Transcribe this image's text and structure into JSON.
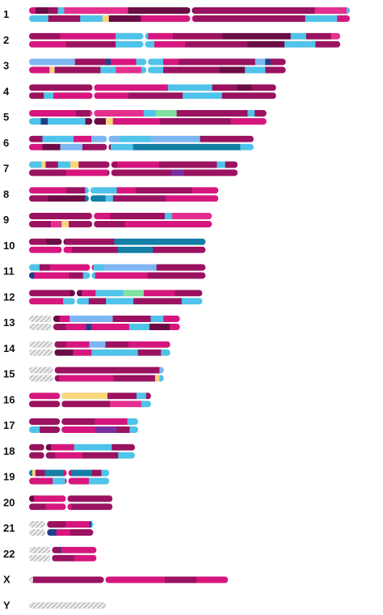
{
  "palette": {
    "magenta": "#d6167e",
    "plum": "#9a1260",
    "deep_plum": "#6b0c45",
    "pink": "#e52f8f",
    "sky": "#4fc3ea",
    "periwinkle": "#7db6f2",
    "teal": "#147fa6",
    "navy": "#1f3f8a",
    "mint": "#7ee0a1",
    "yellow": "#f7d77a",
    "purple": "#7a2f9e",
    "unknown": "#bdbdbd"
  },
  "chromosomes": [
    {
      "label": "1",
      "rel_length": 1.0,
      "centromere": 0.505,
      "unknown": 0,
      "top": [
        [
          "magenta",
          0.02
        ],
        [
          "deep_plum",
          0.04
        ],
        [
          "plum",
          0.03
        ],
        [
          "sky",
          0.02
        ],
        [
          "pink",
          0.2
        ],
        [
          "deep_plum",
          0.2
        ],
        [
          "plum",
          0.38
        ],
        [
          "pink",
          0.1
        ],
        [
          "sky",
          0.01
        ]
      ],
      "bottom": [
        [
          "sky",
          0.06
        ],
        [
          "plum",
          0.1
        ],
        [
          "sky",
          0.07
        ],
        [
          "yellow",
          0.02
        ],
        [
          "deep_plum",
          0.1
        ],
        [
          "magenta",
          0.16
        ],
        [
          "plum",
          0.35
        ],
        [
          "sky",
          0.1
        ],
        [
          "magenta",
          0.04
        ]
      ]
    },
    {
      "label": "2",
      "rel_length": 0.97,
      "centromere": 0.37,
      "unknown": 0,
      "top": [
        [
          "plum",
          0.1
        ],
        [
          "magenta",
          0.18
        ],
        [
          "sky",
          0.1
        ],
        [
          "magenta",
          0.08
        ],
        [
          "plum",
          0.16
        ],
        [
          "deep_plum",
          0.22
        ],
        [
          "sky",
          0.05
        ],
        [
          "plum",
          0.08
        ],
        [
          "pink",
          0.03
        ]
      ],
      "bottom": [
        [
          "magenta",
          0.12
        ],
        [
          "plum",
          0.16
        ],
        [
          "sky",
          0.12
        ],
        [
          "magenta",
          0.1
        ],
        [
          "plum",
          0.2
        ],
        [
          "deep_plum",
          0.12
        ],
        [
          "sky",
          0.1
        ],
        [
          "plum",
          0.08
        ]
      ]
    },
    {
      "label": "3",
      "rel_length": 0.8,
      "centromere": 0.46,
      "unknown": 0,
      "top": [
        [
          "periwinkle",
          0.18
        ],
        [
          "plum",
          0.12
        ],
        [
          "navy",
          0.02
        ],
        [
          "magenta",
          0.1
        ],
        [
          "sky",
          0.1
        ],
        [
          "magenta",
          0.06
        ],
        [
          "plum",
          0.3
        ],
        [
          "periwinkle",
          0.04
        ],
        [
          "navy",
          0.02
        ],
        [
          "plum",
          0.06
        ]
      ],
      "bottom": [
        [
          "magenta",
          0.08
        ],
        [
          "yellow",
          0.02
        ],
        [
          "plum",
          0.18
        ],
        [
          "sky",
          0.06
        ],
        [
          "pink",
          0.1
        ],
        [
          "sky",
          0.08
        ],
        [
          "plum",
          0.22
        ],
        [
          "deep_plum",
          0.1
        ],
        [
          "sky",
          0.08
        ],
        [
          "plum",
          0.08
        ]
      ]
    },
    {
      "label": "4",
      "rel_length": 0.77,
      "centromere": 0.26,
      "unknown": 0,
      "top": [
        [
          "plum",
          0.26
        ],
        [
          "magenta",
          0.3
        ],
        [
          "sky",
          0.18
        ],
        [
          "plum",
          0.1
        ],
        [
          "deep_plum",
          0.06
        ],
        [
          "plum",
          0.1
        ]
      ],
      "bottom": [
        [
          "plum",
          0.06
        ],
        [
          "sky",
          0.04
        ],
        [
          "magenta",
          0.3
        ],
        [
          "plum",
          0.22
        ],
        [
          "sky",
          0.16
        ],
        [
          "plum",
          0.22
        ]
      ]
    },
    {
      "label": "5",
      "rel_length": 0.74,
      "centromere": 0.27,
      "unknown": 0,
      "top": [
        [
          "magenta",
          0.2
        ],
        [
          "plum",
          0.06
        ],
        [
          "pink",
          0.22
        ],
        [
          "sky",
          0.05
        ],
        [
          "mint",
          0.09
        ],
        [
          "plum",
          0.3
        ],
        [
          "sky",
          0.03
        ],
        [
          "plum",
          0.05
        ]
      ],
      "bottom": [
        [
          "sky",
          0.05
        ],
        [
          "navy",
          0.03
        ],
        [
          "sky",
          0.16
        ],
        [
          "deep_plum",
          0.08
        ],
        [
          "yellow",
          0.03
        ],
        [
          "magenta",
          0.2
        ],
        [
          "plum",
          0.3
        ],
        [
          "magenta",
          0.15
        ]
      ]
    },
    {
      "label": "6",
      "rel_length": 0.7,
      "centromere": 0.35,
      "unknown": 0,
      "top": [
        [
          "plum",
          0.06
        ],
        [
          "sky",
          0.14
        ],
        [
          "magenta",
          0.08
        ],
        [
          "periwinkle",
          0.12
        ],
        [
          "sky",
          0.14
        ],
        [
          "periwinkle",
          0.22
        ],
        [
          "plum",
          0.24
        ]
      ],
      "bottom": [
        [
          "magenta",
          0.06
        ],
        [
          "deep_plum",
          0.08
        ],
        [
          "periwinkle",
          0.1
        ],
        [
          "plum",
          0.12
        ],
        [
          "sky",
          0.1
        ],
        [
          "teal",
          0.48
        ],
        [
          "sky",
          0.06
        ]
      ]
    },
    {
      "label": "7",
      "rel_length": 0.65,
      "centromere": 0.39,
      "unknown": 0,
      "top": [
        [
          "sky",
          0.06
        ],
        [
          "yellow",
          0.02
        ],
        [
          "plum",
          0.06
        ],
        [
          "sky",
          0.06
        ],
        [
          "yellow",
          0.04
        ],
        [
          "plum",
          0.18
        ],
        [
          "magenta",
          0.2
        ],
        [
          "plum",
          0.28
        ],
        [
          "sky",
          0.04
        ],
        [
          "plum",
          0.06
        ]
      ],
      "bottom": [
        [
          "plum",
          0.18
        ],
        [
          "magenta",
          0.2
        ],
        [
          "plum",
          0.3
        ],
        [
          "purple",
          0.06
        ],
        [
          "plum",
          0.26
        ]
      ]
    },
    {
      "label": "8",
      "rel_length": 0.59,
      "centromere": 0.32,
      "unknown": 0,
      "top": [
        [
          "magenta",
          0.2
        ],
        [
          "plum",
          0.1
        ],
        [
          "sky",
          0.16
        ],
        [
          "magenta",
          0.1
        ],
        [
          "plum",
          0.3
        ],
        [
          "magenta",
          0.14
        ]
      ],
      "bottom": [
        [
          "plum",
          0.1
        ],
        [
          "deep_plum",
          0.2
        ],
        [
          "teal",
          0.1
        ],
        [
          "sky",
          0.04
        ],
        [
          "plum",
          0.28
        ],
        [
          "magenta",
          0.28
        ]
      ]
    },
    {
      "label": "9",
      "rel_length": 0.57,
      "centromere": 0.35,
      "unknown": 0,
      "top": [
        [
          "plum",
          0.34
        ],
        [
          "magenta",
          0.1
        ],
        [
          "plum",
          0.3
        ],
        [
          "sky",
          0.04
        ],
        [
          "pink",
          0.22
        ]
      ],
      "bottom": [
        [
          "plum",
          0.12
        ],
        [
          "pink",
          0.06
        ],
        [
          "yellow",
          0.04
        ],
        [
          "plum",
          0.3
        ],
        [
          "magenta",
          0.48
        ]
      ]
    },
    {
      "label": "10",
      "rel_length": 0.55,
      "centromere": 0.19,
      "unknown": 0,
      "top": [
        [
          "plum",
          0.1
        ],
        [
          "deep_plum",
          0.1
        ],
        [
          "plum",
          0.28
        ],
        [
          "teal",
          0.52
        ]
      ],
      "bottom": [
        [
          "magenta",
          0.24
        ],
        [
          "plum",
          0.26
        ],
        [
          "teal",
          0.2
        ],
        [
          "plum",
          0.3
        ]
      ]
    },
    {
      "label": "11",
      "rel_length": 0.55,
      "centromere": 0.35,
      "unknown": 0,
      "top": [
        [
          "sky",
          0.06
        ],
        [
          "plum",
          0.06
        ],
        [
          "magenta",
          0.24
        ],
        [
          "sky",
          0.06
        ],
        [
          "periwinkle",
          0.3
        ],
        [
          "plum",
          0.28
        ]
      ],
      "bottom": [
        [
          "navy",
          0.03
        ],
        [
          "magenta",
          0.2
        ],
        [
          "plum",
          0.08
        ],
        [
          "sky",
          0.06
        ],
        [
          "magenta",
          0.3
        ],
        [
          "plum",
          0.33
        ]
      ]
    },
    {
      "label": "12",
      "rel_length": 0.54,
      "centromere": 0.27,
      "unknown": 0,
      "top": [
        [
          "plum",
          0.24
        ],
        [
          "deep_plum",
          0.06
        ],
        [
          "magenta",
          0.08
        ],
        [
          "sky",
          0.16
        ],
        [
          "mint",
          0.12
        ],
        [
          "magenta",
          0.18
        ],
        [
          "plum",
          0.16
        ]
      ],
      "bottom": [
        [
          "magenta",
          0.2
        ],
        [
          "sky",
          0.14
        ],
        [
          "plum",
          0.1
        ],
        [
          "sky",
          0.16
        ],
        [
          "plum",
          0.28
        ],
        [
          "sky",
          0.12
        ]
      ]
    },
    {
      "label": "13",
      "rel_length": 0.47,
      "centromere": 0.16,
      "unknown": 0.16,
      "top": [
        [
          "deep_plum",
          0.05
        ],
        [
          "magenta",
          0.08
        ],
        [
          "periwinkle",
          0.34
        ],
        [
          "plum",
          0.3
        ],
        [
          "sky",
          0.1
        ],
        [
          "magenta",
          0.13
        ]
      ],
      "bottom": [
        [
          "plum",
          0.1
        ],
        [
          "magenta",
          0.16
        ],
        [
          "navy",
          0.04
        ],
        [
          "magenta",
          0.3
        ],
        [
          "sky",
          0.16
        ],
        [
          "deep_plum",
          0.16
        ],
        [
          "magenta",
          0.08
        ]
      ]
    },
    {
      "label": "14",
      "rel_length": 0.44,
      "centromere": 0.18,
      "unknown": 0.18,
      "top": [
        [
          "plum",
          0.1
        ],
        [
          "magenta",
          0.2
        ],
        [
          "periwinkle",
          0.14
        ],
        [
          "plum",
          0.2
        ],
        [
          "magenta",
          0.36
        ]
      ],
      "bottom": [
        [
          "deep_plum",
          0.16
        ],
        [
          "magenta",
          0.16
        ],
        [
          "sky",
          0.4
        ],
        [
          "plum",
          0.2
        ],
        [
          "sky",
          0.08
        ]
      ]
    },
    {
      "label": "15",
      "rel_length": 0.42,
      "centromere": 0.19,
      "unknown": 0.19,
      "top": [
        [
          "plum",
          0.96
        ],
        [
          "periwinkle",
          0.04
        ]
      ],
      "bottom": [
        [
          "plum",
          0.04
        ],
        [
          "magenta",
          0.5
        ],
        [
          "plum",
          0.38
        ],
        [
          "yellow",
          0.04
        ],
        [
          "sky",
          0.04
        ]
      ]
    },
    {
      "label": "16",
      "rel_length": 0.38,
      "centromere": 0.26,
      "unknown": 0,
      "top": [
        [
          "magenta",
          0.26
        ],
        [
          "yellow",
          0.38
        ],
        [
          "plum",
          0.24
        ],
        [
          "sky",
          0.08
        ],
        [
          "plum",
          0.04
        ]
      ],
      "bottom": [
        [
          "plum",
          0.66
        ],
        [
          "pink",
          0.26
        ],
        [
          "sky",
          0.08
        ]
      ]
    },
    {
      "label": "17",
      "rel_length": 0.34,
      "centromere": 0.29,
      "unknown": 0,
      "top": [
        [
          "plum",
          0.6
        ],
        [
          "magenta",
          0.3
        ],
        [
          "sky",
          0.1
        ]
      ],
      "bottom": [
        [
          "sky",
          0.1
        ],
        [
          "plum",
          0.2
        ],
        [
          "magenta",
          0.3
        ],
        [
          "purple",
          0.2
        ],
        [
          "plum",
          0.12
        ],
        [
          "sky",
          0.08
        ]
      ]
    },
    {
      "label": "18",
      "rel_length": 0.33,
      "centromere": 0.15,
      "unknown": 0,
      "top": [
        [
          "plum",
          0.14
        ],
        [
          "deep_plum",
          0.06
        ],
        [
          "magenta",
          0.22
        ],
        [
          "sky",
          0.36
        ],
        [
          "plum",
          0.22
        ]
      ],
      "bottom": [
        [
          "plum",
          0.24
        ],
        [
          "magenta",
          0.26
        ],
        [
          "plum",
          0.34
        ],
        [
          "sky",
          0.16
        ]
      ]
    },
    {
      "label": "19",
      "rel_length": 0.25,
      "centromere": 0.48,
      "unknown": 0,
      "top": [
        [
          "teal",
          0.04
        ],
        [
          "yellow",
          0.04
        ],
        [
          "plum",
          0.12
        ],
        [
          "teal",
          0.24
        ],
        [
          "magenta",
          0.08
        ],
        [
          "teal",
          0.26
        ],
        [
          "plum",
          0.12
        ],
        [
          "sky",
          0.1
        ]
      ],
      "bottom": [
        [
          "magenta",
          0.3
        ],
        [
          "sky",
          0.16
        ],
        [
          "magenta",
          0.28
        ],
        [
          "sky",
          0.26
        ]
      ]
    },
    {
      "label": "20",
      "rel_length": 0.26,
      "centromere": 0.45,
      "unknown": 0,
      "top": [
        [
          "deep_plum",
          0.06
        ],
        [
          "magenta",
          0.4
        ],
        [
          "plum",
          0.54
        ]
      ],
      "bottom": [
        [
          "plum",
          0.2
        ],
        [
          "magenta",
          0.3
        ],
        [
          "plum",
          0.5
        ]
      ]
    },
    {
      "label": "21",
      "rel_length": 0.2,
      "centromere": 0.28,
      "unknown": 0.28,
      "top": [
        [
          "plum",
          0.4
        ],
        [
          "magenta",
          0.52
        ],
        [
          "navy",
          0.04
        ],
        [
          "sky",
          0.04
        ]
      ],
      "bottom": [
        [
          "navy",
          0.2
        ],
        [
          "magenta",
          0.3
        ],
        [
          "plum",
          0.5
        ]
      ]
    },
    {
      "label": "22",
      "rel_length": 0.21,
      "centromere": 0.34,
      "unknown": 0.34,
      "top": [
        [
          "plum",
          0.16
        ],
        [
          "navy",
          0.04
        ],
        [
          "magenta",
          0.8
        ]
      ],
      "bottom": [
        [
          "plum",
          0.5
        ],
        [
          "magenta",
          0.5
        ]
      ]
    },
    {
      "label": "X",
      "rel_length": 0.62,
      "centromere": 0.38,
      "unknown": 0,
      "single": true,
      "top": [
        [
          "unknown",
          0.02
        ],
        [
          "plum",
          0.36
        ],
        [
          "magenta",
          0.3
        ],
        [
          "plum",
          0.16
        ],
        [
          "magenta",
          0.16
        ]
      ],
      "bottom": []
    },
    {
      "label": "Y",
      "rel_length": 0.24,
      "centromere": 0.3,
      "unknown": 1,
      "single": true,
      "top": [],
      "bottom": []
    }
  ]
}
